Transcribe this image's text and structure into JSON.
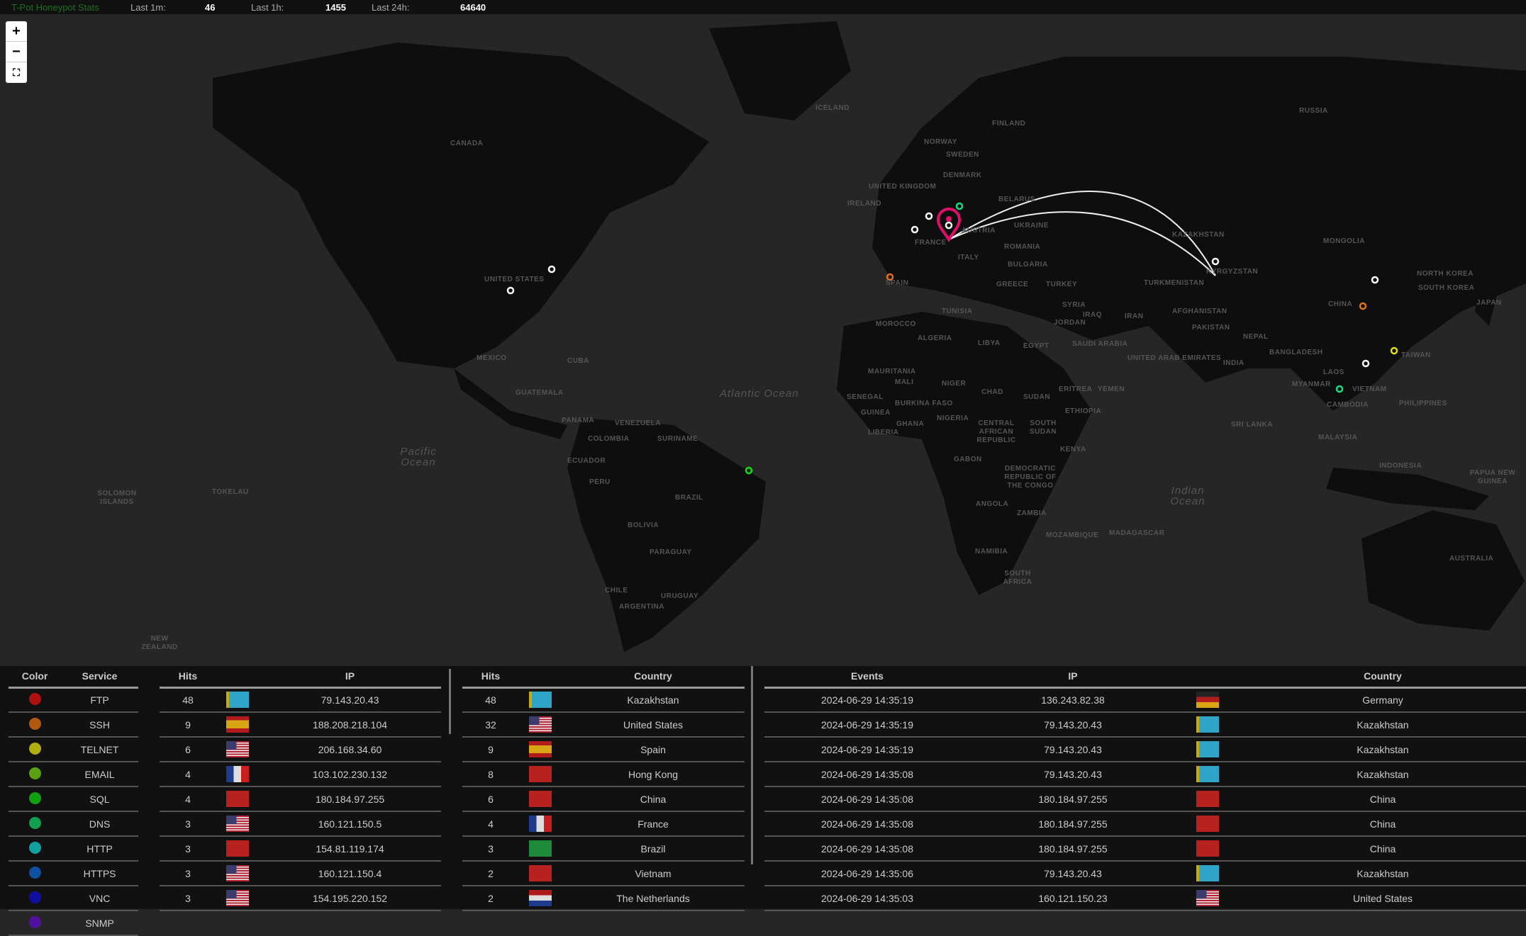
{
  "header": {
    "title": "T-Pot Honeypot Stats",
    "last_1m_label": "Last 1m:",
    "last_1m": "46",
    "last_1h_label": "Last 1h:",
    "last_1h": "1455",
    "last_24h_label": "Last 24h:",
    "last_24h": "64640"
  },
  "map_controls": {
    "zoom_in": "+",
    "zoom_out": "−",
    "fullscreen": "⛶"
  },
  "map_labels": [
    "Canada",
    "United States",
    "Mexico",
    "Cuba",
    "Guatemala",
    "Panama",
    "Venezuela",
    "Colombia",
    "Suriname",
    "Ecuador",
    "Peru",
    "Brazil",
    "Bolivia",
    "Paraguay",
    "Chile",
    "Uruguay",
    "Argentina",
    "Iceland",
    "Norway",
    "Sweden",
    "Finland",
    "United Kingdom",
    "Ireland",
    "Denmark",
    "Belarus",
    "Ukraine",
    "France",
    "Spain",
    "Austria",
    "Romania",
    "Bulgaria",
    "Greece",
    "Turkey",
    "Italy",
    "Russia",
    "Kazakhstan",
    "Kyrgyzstan",
    "Mongolia",
    "China",
    "North Korea",
    "South Korea",
    "Japan",
    "Turkmenistan",
    "Afghanistan",
    "Pakistan",
    "Iran",
    "Iraq",
    "Syria",
    "Jordan",
    "Saudi Arabia",
    "United Arab Emirates",
    "Nepal",
    "India",
    "Bangladesh",
    "Myanmar",
    "Laos",
    "Vietnam",
    "Cambodia",
    "Philippines",
    "Taiwan",
    "Malaysia",
    "Indonesia",
    "Sri Lanka",
    "Morocco",
    "Algeria",
    "Tunisia",
    "Libya",
    "Egypt",
    "Mauritania",
    "Mali",
    "Niger",
    "Chad",
    "Sudan",
    "Eritrea",
    "Yemen",
    "Ethiopia",
    "Senegal",
    "Guinea",
    "Liberia",
    "Burkina Faso",
    "Ghana",
    "Nigeria",
    "Central African Republic",
    "South Sudan",
    "Kenya",
    "Gabon",
    "Democratic Republic of the Congo",
    "Angola",
    "Zambia",
    "Namibia",
    "Mozambique",
    "Madagascar",
    "South Africa",
    "Australia",
    "New Zealand",
    "Papua New Guinea",
    "Solomon Islands",
    "Tokelau"
  ],
  "oceans": {
    "atlantic": "Atlantic Ocean",
    "pacific": "Pacific Ocean",
    "indian": "Indian Ocean"
  },
  "services": {
    "headers": {
      "color": "Color",
      "service": "Service"
    },
    "rows": [
      {
        "name": "FTP",
        "color": "#b01010"
      },
      {
        "name": "SSH",
        "color": "#b05a10"
      },
      {
        "name": "TELNET",
        "color": "#b0b010"
      },
      {
        "name": "EMAIL",
        "color": "#5aa010"
      },
      {
        "name": "SQL",
        "color": "#10a010"
      },
      {
        "name": "DNS",
        "color": "#10a050"
      },
      {
        "name": "HTTP",
        "color": "#10a0a0"
      },
      {
        "name": "HTTPS",
        "color": "#1050a0"
      },
      {
        "name": "VNC",
        "color": "#1010a0"
      },
      {
        "name": "SNMP",
        "color": "#5010a0"
      }
    ]
  },
  "top_ips": {
    "headers": {
      "hits": "Hits",
      "ip": "IP"
    },
    "rows": [
      {
        "hits": "48",
        "ip": "79.143.20.43",
        "flag": "kz"
      },
      {
        "hits": "9",
        "ip": "188.208.218.104",
        "flag": "es"
      },
      {
        "hits": "6",
        "ip": "206.168.34.60",
        "flag": "us"
      },
      {
        "hits": "4",
        "ip": "103.102.230.132",
        "flag": "fr"
      },
      {
        "hits": "4",
        "ip": "180.184.97.255",
        "flag": "cn"
      },
      {
        "hits": "3",
        "ip": "160.121.150.5",
        "flag": "us"
      },
      {
        "hits": "3",
        "ip": "154.81.119.174",
        "flag": "hk"
      },
      {
        "hits": "3",
        "ip": "160.121.150.4",
        "flag": "us"
      },
      {
        "hits": "3",
        "ip": "154.195.220.152",
        "flag": "us"
      }
    ]
  },
  "top_countries": {
    "headers": {
      "hits": "Hits",
      "country": "Country"
    },
    "rows": [
      {
        "hits": "48",
        "country": "Kazakhstan",
        "flag": "kz"
      },
      {
        "hits": "32",
        "country": "United States",
        "flag": "us"
      },
      {
        "hits": "9",
        "country": "Spain",
        "flag": "es"
      },
      {
        "hits": "8",
        "country": "Hong Kong",
        "flag": "hk"
      },
      {
        "hits": "6",
        "country": "China",
        "flag": "cn"
      },
      {
        "hits": "4",
        "country": "France",
        "flag": "fr"
      },
      {
        "hits": "3",
        "country": "Brazil",
        "flag": "br"
      },
      {
        "hits": "2",
        "country": "Vietnam",
        "flag": "vn"
      },
      {
        "hits": "2",
        "country": "The Netherlands",
        "flag": "nl"
      }
    ]
  },
  "events": {
    "headers": {
      "events": "Events",
      "ip": "IP",
      "country": "Country"
    },
    "rows": [
      {
        "time": "2024-06-29 14:35:19",
        "ip": "136.243.82.38",
        "country": "Germany",
        "flag": "de"
      },
      {
        "time": "2024-06-29 14:35:19",
        "ip": "79.143.20.43",
        "country": "Kazakhstan",
        "flag": "kz"
      },
      {
        "time": "2024-06-29 14:35:19",
        "ip": "79.143.20.43",
        "country": "Kazakhstan",
        "flag": "kz"
      },
      {
        "time": "2024-06-29 14:35:08",
        "ip": "79.143.20.43",
        "country": "Kazakhstan",
        "flag": "kz"
      },
      {
        "time": "2024-06-29 14:35:08",
        "ip": "180.184.97.255",
        "country": "China",
        "flag": "cn"
      },
      {
        "time": "2024-06-29 14:35:08",
        "ip": "180.184.97.255",
        "country": "China",
        "flag": "cn"
      },
      {
        "time": "2024-06-29 14:35:08",
        "ip": "180.184.97.255",
        "country": "China",
        "flag": "cn"
      },
      {
        "time": "2024-06-29 14:35:06",
        "ip": "79.143.20.43",
        "country": "Kazakhstan",
        "flag": "kz"
      },
      {
        "time": "2024-06-29 14:35:03",
        "ip": "160.121.150.23",
        "country": "United States",
        "flag": "us"
      }
    ]
  },
  "marker_colors": {
    "honeypot_pin": "#e0106a",
    "arc": "#ffffff",
    "attack_white": "#ffffff",
    "attack_ssh": "#e07010",
    "attack_telnet": "#e0e010",
    "attack_sql": "#10e010",
    "attack_dns": "#10e080"
  }
}
